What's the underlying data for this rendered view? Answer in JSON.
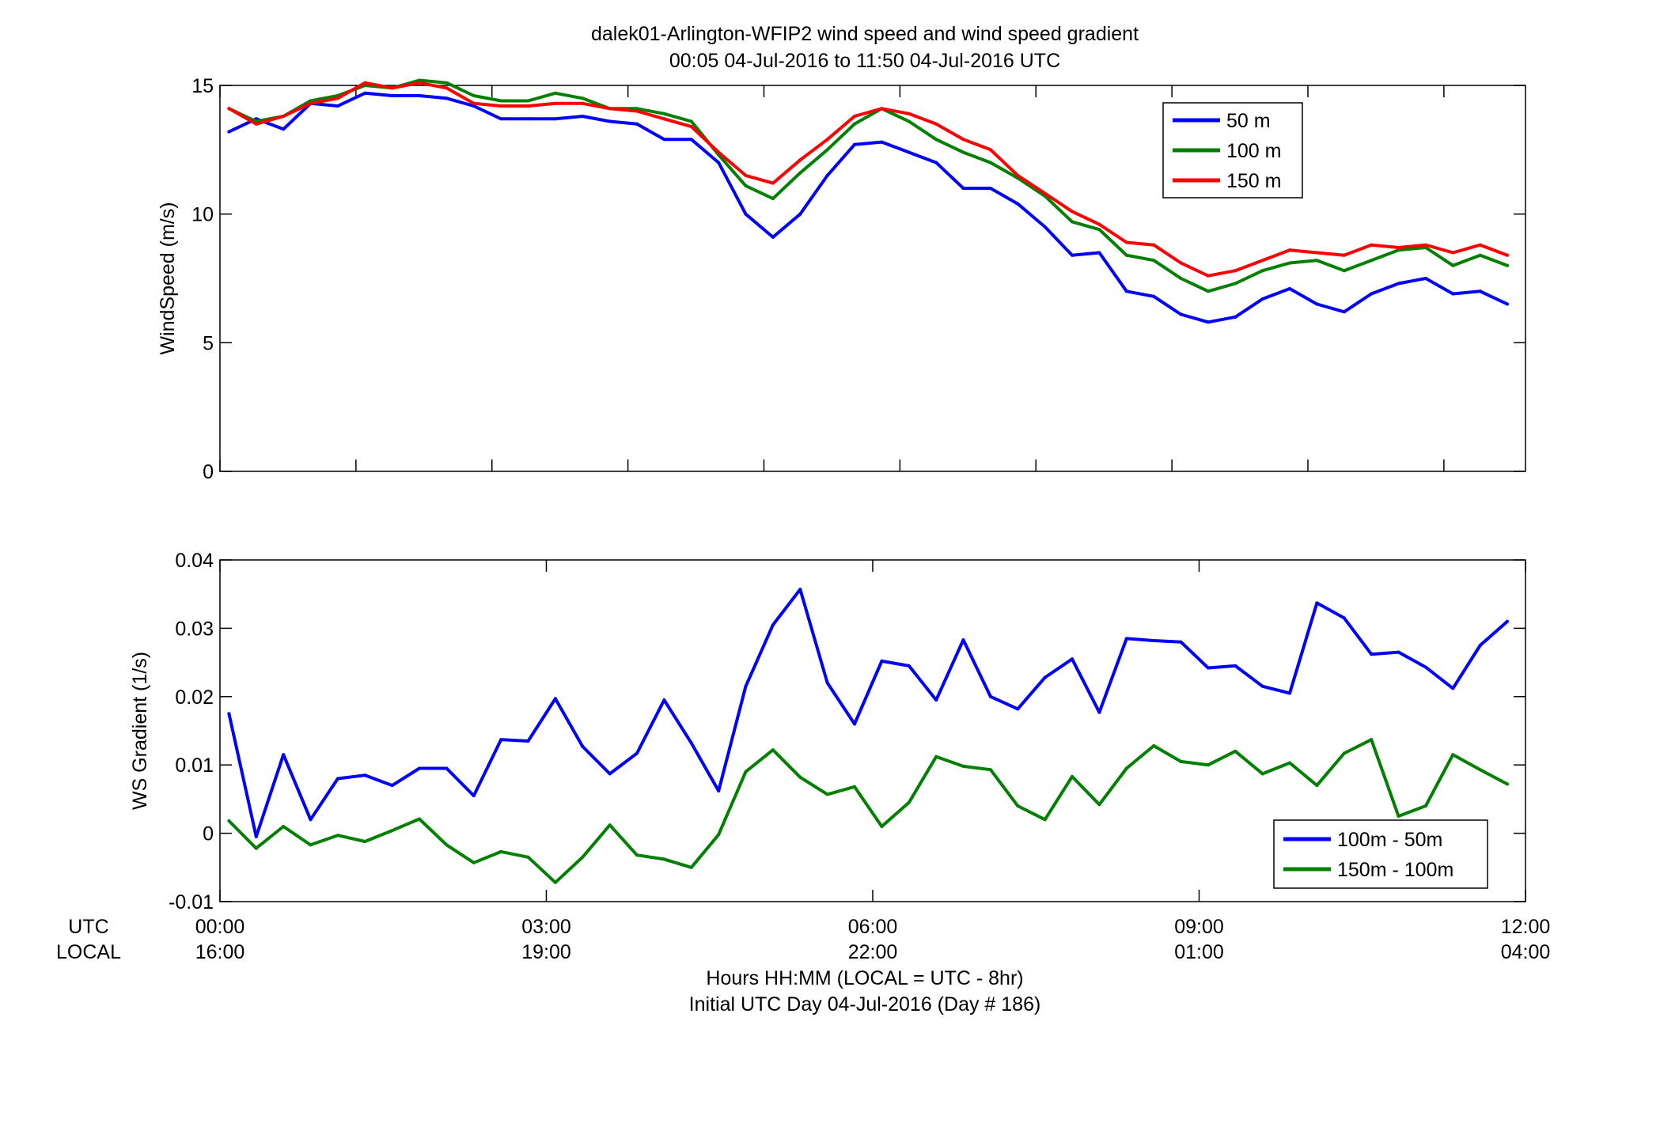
{
  "title": {
    "line1": "dalek01-Arlington-WFIP2  wind speed and wind speed gradient",
    "line2": "00:05 04-Jul-2016 to 11:50 04-Jul-2016  UTC"
  },
  "footer": {
    "utc_label": "UTC",
    "local_label": "LOCAL",
    "xlabel_line1": "Hours HH:MM  (LOCAL = UTC - 8hr)",
    "xlabel_line2": "Initial UTC Day 04-Jul-2016 (Day # 186)"
  },
  "chart_data": [
    {
      "type": "line",
      "title": "dalek01-Arlington-WFIP2  wind speed and wind speed gradient",
      "xlabel": "",
      "ylabel": "WindSpeed (m/s)",
      "xlim": [
        0,
        12
      ],
      "ylim": [
        0,
        15
      ],
      "yticks": [
        0,
        5,
        10,
        15
      ],
      "ytick_labels": [
        "0",
        "5",
        "10",
        "15"
      ],
      "xticks": [
        0,
        1.25,
        2.5,
        3.75,
        5,
        6.25,
        7.5,
        8.75,
        10,
        11.25
      ],
      "grid": false,
      "legend_position": "top-right",
      "x": [
        0.083,
        0.333,
        0.583,
        0.833,
        1.083,
        1.333,
        1.583,
        1.833,
        2.083,
        2.333,
        2.583,
        2.833,
        3.083,
        3.333,
        3.583,
        3.833,
        4.083,
        4.333,
        4.583,
        4.833,
        5.083,
        5.333,
        5.583,
        5.833,
        6.083,
        6.333,
        6.583,
        6.833,
        7.083,
        7.333,
        7.583,
        7.833,
        8.083,
        8.333,
        8.583,
        8.833,
        9.083,
        9.333,
        9.583,
        9.833,
        10.083,
        10.333,
        10.583,
        10.833,
        11.083,
        11.333,
        11.583,
        11.833
      ],
      "series": [
        {
          "name": "50 m",
          "color": "#0000ff",
          "values": [
            13.2,
            13.7,
            13.3,
            14.3,
            14.2,
            14.7,
            14.6,
            14.6,
            14.5,
            14.2,
            13.7,
            13.7,
            13.7,
            13.8,
            13.6,
            13.5,
            12.9,
            12.9,
            12.0,
            10.0,
            9.1,
            10.0,
            11.5,
            12.7,
            12.8,
            12.4,
            12.0,
            11.0,
            11.0,
            10.4,
            9.5,
            8.4,
            8.5,
            7.0,
            6.8,
            6.1,
            5.8,
            6.0,
            6.7,
            7.1,
            6.5,
            6.2,
            6.9,
            7.3,
            7.5,
            6.9,
            7.0,
            6.5
          ]
        },
        {
          "name": "100 m",
          "color": "#008000",
          "values": [
            14.1,
            13.6,
            13.8,
            14.4,
            14.6,
            15.0,
            14.9,
            15.2,
            15.1,
            14.6,
            14.4,
            14.4,
            14.7,
            14.5,
            14.1,
            14.1,
            13.9,
            13.6,
            12.3,
            11.1,
            10.6,
            11.6,
            12.5,
            13.5,
            14.1,
            13.6,
            12.9,
            12.4,
            12.0,
            11.4,
            10.7,
            9.7,
            9.4,
            8.4,
            8.2,
            7.5,
            7.0,
            7.3,
            7.8,
            8.1,
            8.2,
            7.8,
            8.2,
            8.6,
            8.7,
            8.0,
            8.4,
            8.0
          ]
        },
        {
          "name": "150 m",
          "color": "#ff0000",
          "values": [
            14.1,
            13.5,
            13.8,
            14.3,
            14.5,
            15.1,
            14.9,
            15.1,
            14.9,
            14.3,
            14.2,
            14.2,
            14.3,
            14.3,
            14.1,
            14.0,
            13.7,
            13.4,
            12.4,
            11.5,
            11.2,
            12.1,
            12.9,
            13.8,
            14.1,
            13.9,
            13.5,
            12.9,
            12.5,
            11.5,
            10.8,
            10.1,
            9.6,
            8.9,
            8.8,
            8.1,
            7.6,
            7.8,
            8.2,
            8.6,
            8.5,
            8.4,
            8.8,
            8.7,
            8.8,
            8.5,
            8.8,
            8.4
          ]
        }
      ]
    },
    {
      "type": "line",
      "xlabel": "Hours HH:MM  (LOCAL = UTC - 8hr)",
      "ylabel": "WS Gradient (1/s)",
      "xlim": [
        0,
        12
      ],
      "ylim": [
        -0.01,
        0.04
      ],
      "yticks": [
        -0.01,
        0,
        0.01,
        0.02,
        0.03,
        0.04
      ],
      "ytick_labels": [
        "-0.01",
        "0",
        "0.01",
        "0.02",
        "0.03",
        "0.04"
      ],
      "xticks": [
        0,
        3,
        6,
        9,
        12
      ],
      "xtick_labels_utc": [
        "00:00",
        "03:00",
        "06:00",
        "09:00",
        "12:00"
      ],
      "xtick_labels_local": [
        "16:00",
        "19:00",
        "22:00",
        "01:00",
        "04:00"
      ],
      "grid": false,
      "legend_position": "bottom-right",
      "x": [
        0.083,
        0.333,
        0.583,
        0.833,
        1.083,
        1.333,
        1.583,
        1.833,
        2.083,
        2.333,
        2.583,
        2.833,
        3.083,
        3.333,
        3.583,
        3.833,
        4.083,
        4.333,
        4.583,
        4.833,
        5.083,
        5.333,
        5.583,
        5.833,
        6.083,
        6.333,
        6.583,
        6.833,
        7.083,
        7.333,
        7.583,
        7.833,
        8.083,
        8.333,
        8.583,
        8.833,
        9.083,
        9.333,
        9.583,
        9.833,
        10.083,
        10.333,
        10.583,
        10.833,
        11.083,
        11.333,
        11.583,
        11.833
      ],
      "series": [
        {
          "name": "100m - 50m",
          "color": "#0000ff",
          "values": [
            0.0175,
            -0.0005,
            0.0115,
            0.002,
            0.008,
            0.0085,
            0.007,
            0.0095,
            0.0095,
            0.0055,
            0.0137,
            0.0135,
            0.0197,
            0.0127,
            0.0087,
            0.0117,
            0.0195,
            0.0132,
            0.0062,
            0.0215,
            0.0305,
            0.0357,
            0.022,
            0.016,
            0.0252,
            0.0245,
            0.0195,
            0.0283,
            0.02,
            0.0182,
            0.0228,
            0.0255,
            0.0177,
            0.0285,
            0.0282,
            0.028,
            0.0242,
            0.0245,
            0.0215,
            0.0205,
            0.0337,
            0.0315,
            0.0262,
            0.0265,
            0.0243,
            0.0212,
            0.0275,
            0.031
          ]
        },
        {
          "name": "150m - 100m",
          "color": "#008000",
          "values": [
            0.0018,
            -0.0022,
            0.001,
            -0.0017,
            -0.0003,
            -0.0012,
            0.0004,
            0.0021,
            -0.0017,
            -0.0043,
            -0.0027,
            -0.0035,
            -0.0072,
            -0.0035,
            0.0012,
            -0.0032,
            -0.0038,
            -0.005,
            -0.0002,
            0.009,
            0.0122,
            0.0082,
            0.0057,
            0.0068,
            0.001,
            0.0045,
            0.0112,
            0.0098,
            0.0093,
            0.004,
            0.002,
            0.0083,
            0.0042,
            0.0095,
            0.0128,
            0.0105,
            0.01,
            0.012,
            0.0087,
            0.0103,
            0.007,
            0.0117,
            0.0137,
            0.0025,
            0.004,
            0.0115,
            0.0093,
            0.0072
          ]
        }
      ]
    }
  ]
}
